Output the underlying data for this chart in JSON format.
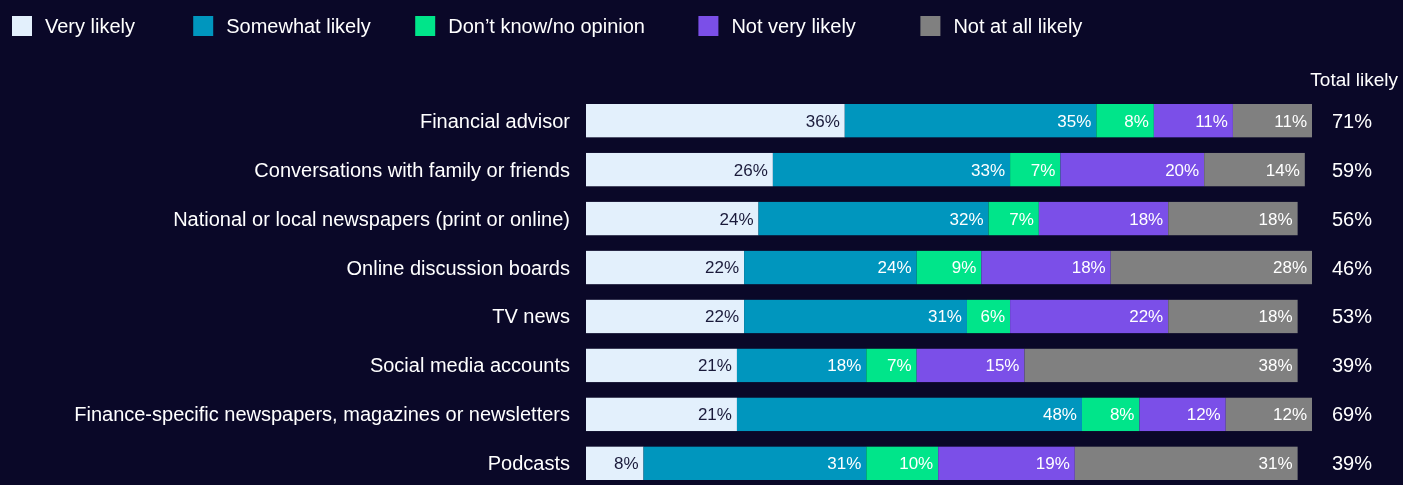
{
  "chart_data": {
    "type": "bar",
    "orientation": "horizontal",
    "stacked": true,
    "legend": "top left",
    "tick_labels": "y",
    "xlim": [
      0,
      101
    ],
    "categories": [
      "Financial advisor",
      "Conversations with family or friends",
      "National or local newspapers (print or online)",
      "Online discussion boards",
      "TV news",
      "Social media accounts",
      "Finance-specific newspapers, magazines or newsletters",
      "Podcasts"
    ],
    "series": [
      {
        "name": "Very likely",
        "color": "#e3f0fc",
        "values": [
          36,
          26,
          24,
          22,
          22,
          21,
          21,
          8
        ],
        "value_labels": [
          "36%",
          "26%",
          "24%",
          "22%",
          "22%",
          "21%",
          "21%",
          "8%"
        ]
      },
      {
        "name": "Somewhat likely",
        "color": "#0096be",
        "values": [
          35,
          33,
          32,
          24,
          31,
          18,
          48,
          31
        ],
        "value_labels": [
          "35%",
          "33%",
          "32%",
          "24%",
          "31%",
          "18%",
          "48%",
          "31%"
        ]
      },
      {
        "name": "Don’t know/no opinion",
        "color": "#00e58a",
        "values": [
          8,
          7,
          7,
          9,
          6,
          7,
          8,
          10
        ],
        "value_labels": [
          "8%",
          "7%",
          "7%",
          "9%",
          "6%",
          "7%",
          "8%",
          "10%"
        ]
      },
      {
        "name": "Not very likely",
        "color": "#7b4fe8",
        "values": [
          11,
          20,
          18,
          18,
          22,
          15,
          12,
          19
        ],
        "value_labels": [
          "11%",
          "20%",
          "18%",
          "18%",
          "22%",
          "15%",
          "12%",
          "19%"
        ]
      },
      {
        "name": "Not at all likely",
        "color": "#808080",
        "values": [
          11,
          14,
          18,
          28,
          18,
          38,
          12,
          31
        ],
        "value_labels": [
          "11%",
          "14%",
          "18%",
          "28%",
          "18%",
          "38%",
          "12%",
          "31%"
        ]
      }
    ],
    "annotations": [
      "Total likely",
      "71%",
      "59%",
      "56%",
      "46%",
      "53%",
      "39%",
      "69%",
      "39%"
    ]
  }
}
